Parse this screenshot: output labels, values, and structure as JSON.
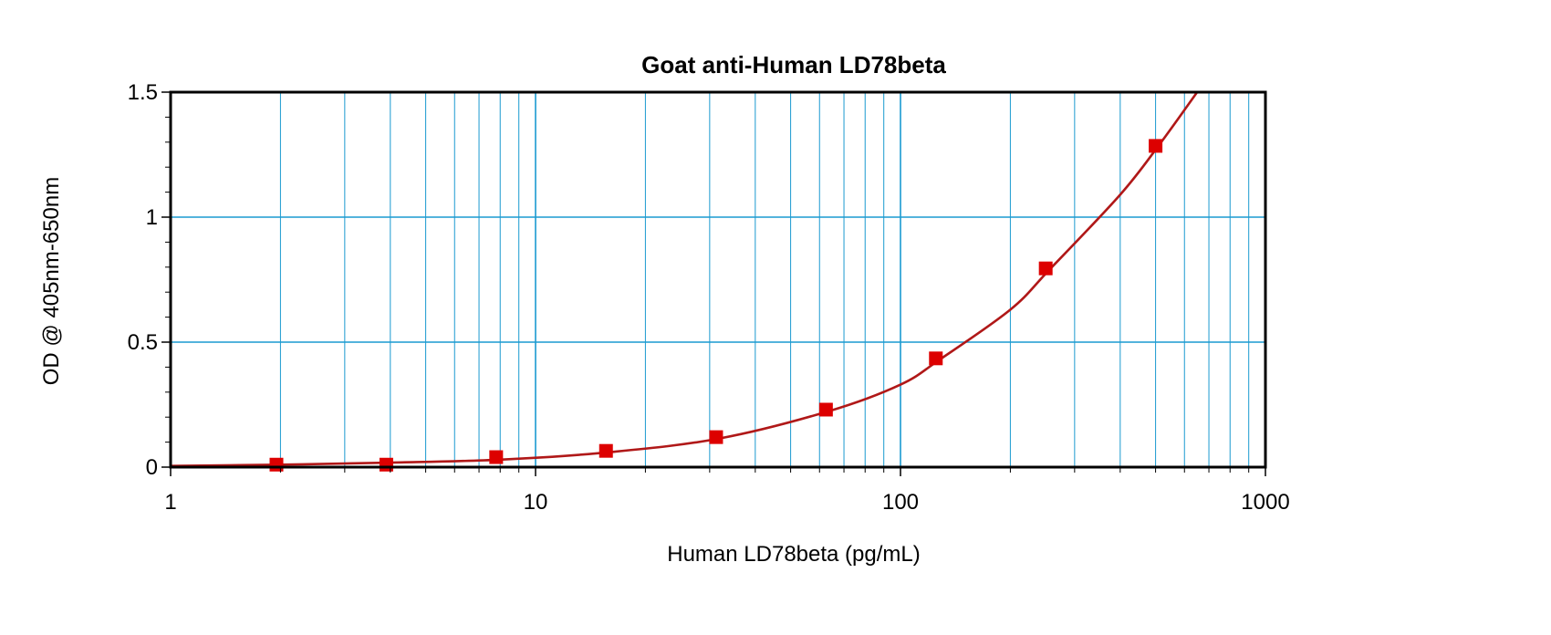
{
  "chart_data": {
    "type": "scatter",
    "title": "Goat anti-Human LD78beta",
    "xlabel": "Human LD78beta (pg/mL)",
    "ylabel": "OD @ 405nm-650nm",
    "x_scale": "log",
    "xlim": [
      1,
      1000
    ],
    "ylim": [
      0,
      1.5
    ],
    "x_ticks": [
      1,
      10,
      100,
      1000
    ],
    "x_tick_labels": [
      "1",
      "10",
      "100",
      "1000"
    ],
    "y_ticks": [
      0,
      0.5,
      1,
      1.5
    ],
    "y_tick_labels": [
      "0",
      "0.5",
      "1",
      "1.5"
    ],
    "grid": true,
    "colors": {
      "grid": "#1a9ad0",
      "series": "#dd0000",
      "fit_line": "#b01818",
      "axis": "#000000"
    },
    "series": [
      {
        "x": [
          1.95,
          3.9,
          7.8,
          15.6,
          31.25,
          62.5,
          125,
          250,
          500
        ],
        "y": [
          0.01,
          0.01,
          0.04,
          0.065,
          0.12,
          0.23,
          0.435,
          0.795,
          1.285
        ]
      }
    ],
    "fit_curve": {
      "x": [
        1,
        2,
        4,
        8,
        16,
        32,
        64,
        100,
        128,
        200,
        256,
        400,
        512,
        650
      ],
      "y": [
        0.005,
        0.01,
        0.018,
        0.03,
        0.06,
        0.115,
        0.225,
        0.33,
        0.43,
        0.63,
        0.79,
        1.09,
        1.29,
        1.5
      ]
    }
  }
}
